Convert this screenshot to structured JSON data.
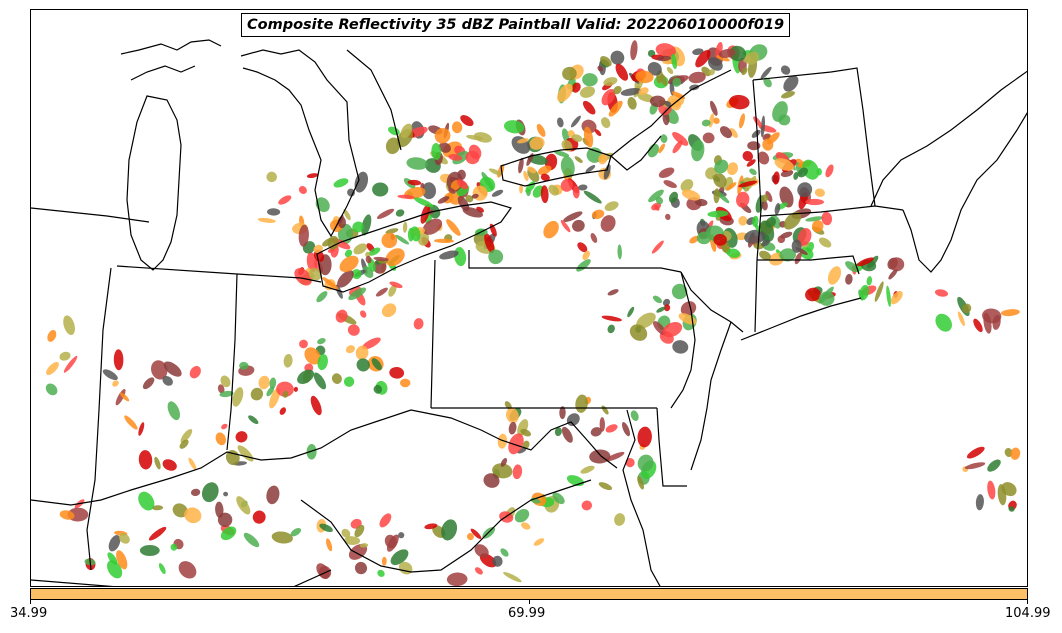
{
  "title": "Composite Reflectivity 35 dBZ Paintball Valid: 202206010000f019",
  "colorbar": {
    "color": "#FDC066",
    "ticks": [
      "34.99",
      "69.99",
      "104.99"
    ]
  },
  "member_colors": [
    "#FF4444",
    "#D40000",
    "#A04040",
    "#8B3A3A",
    "#555555",
    "#FF8C1A",
    "#FFB347",
    "#33CC33",
    "#2E7D32",
    "#4CAF50",
    "#B5B04A",
    "#8E8E2A"
  ],
  "map_icons": [
    "state-boundary-lines",
    "coastline-lines",
    "great-lakes-outline"
  ]
}
